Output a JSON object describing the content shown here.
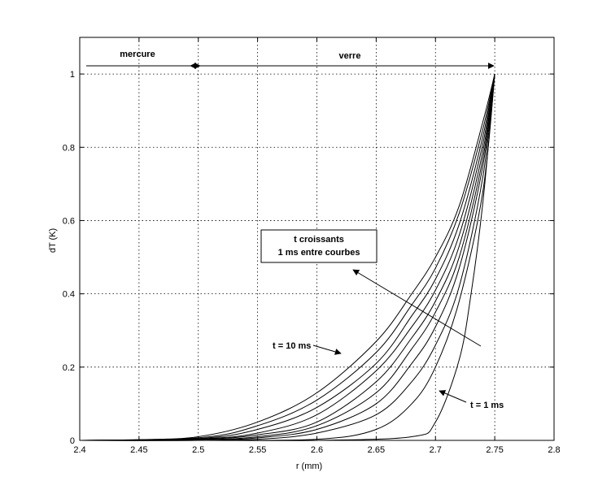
{
  "chart_data": {
    "type": "line",
    "xlabel": "r (mm)",
    "ylabel": "dT (K)",
    "xlim": [
      2.4,
      2.8
    ],
    "ylim": [
      0,
      1.1
    ],
    "x_ticks": [
      2.4,
      2.45,
      2.5,
      2.55,
      2.6,
      2.65,
      2.7,
      2.75,
      2.8
    ],
    "x_tick_labels": [
      "2.4",
      "2.45",
      "2.5",
      "2.55",
      "2.6",
      "2.65",
      "2.7",
      "2.75",
      "2.8"
    ],
    "y_ticks": [
      0,
      0.2,
      0.4,
      0.6,
      0.8,
      1
    ],
    "y_tick_labels": [
      "0",
      "0.2",
      "0.4",
      "0.6",
      "0.8",
      "1"
    ],
    "grid": true,
    "series": [
      {
        "t_ms": 1,
        "x": [
          2.4,
          2.5,
          2.6,
          2.68,
          2.7,
          2.72,
          2.73,
          2.74,
          2.75
        ],
        "y": [
          0,
          0,
          0,
          0.01,
          0.05,
          0.22,
          0.4,
          0.65,
          1
        ]
      },
      {
        "t_ms": 2,
        "x": [
          2.4,
          2.5,
          2.6,
          2.65,
          2.68,
          2.7,
          2.72,
          2.74,
          2.75
        ],
        "y": [
          0,
          0,
          0.003,
          0.03,
          0.1,
          0.2,
          0.38,
          0.68,
          1
        ]
      },
      {
        "t_ms": 3,
        "x": [
          2.4,
          2.5,
          2.55,
          2.6,
          2.65,
          2.68,
          2.7,
          2.72,
          2.74,
          2.75
        ],
        "y": [
          0,
          0,
          0.003,
          0.02,
          0.07,
          0.16,
          0.26,
          0.42,
          0.72,
          1
        ]
      },
      {
        "t_ms": 4,
        "x": [
          2.4,
          2.5,
          2.55,
          2.6,
          2.65,
          2.68,
          2.7,
          2.72,
          2.74,
          2.75
        ],
        "y": [
          0,
          0,
          0.007,
          0.03,
          0.1,
          0.21,
          0.31,
          0.47,
          0.75,
          1
        ]
      },
      {
        "t_ms": 5,
        "x": [
          2.4,
          2.5,
          2.55,
          2.6,
          2.65,
          2.68,
          2.7,
          2.72,
          2.74,
          2.75
        ],
        "y": [
          0,
          0.002,
          0.01,
          0.04,
          0.13,
          0.25,
          0.35,
          0.5,
          0.77,
          1
        ]
      },
      {
        "t_ms": 6,
        "x": [
          2.4,
          2.5,
          2.55,
          2.6,
          2.65,
          2.68,
          2.7,
          2.72,
          2.74,
          2.75
        ],
        "y": [
          0,
          0.003,
          0.015,
          0.05,
          0.16,
          0.28,
          0.38,
          0.53,
          0.79,
          1
        ]
      },
      {
        "t_ms": 7,
        "x": [
          2.4,
          2.5,
          2.55,
          2.6,
          2.65,
          2.68,
          2.7,
          2.72,
          2.74,
          2.75
        ],
        "y": [
          0,
          0.004,
          0.02,
          0.07,
          0.19,
          0.31,
          0.41,
          0.56,
          0.81,
          1
        ]
      },
      {
        "t_ms": 8,
        "x": [
          2.4,
          2.5,
          2.55,
          2.6,
          2.65,
          2.68,
          2.7,
          2.72,
          2.74,
          2.75
        ],
        "y": [
          0,
          0.005,
          0.03,
          0.09,
          0.21,
          0.34,
          0.44,
          0.59,
          0.83,
          1
        ]
      },
      {
        "t_ms": 9,
        "x": [
          2.4,
          2.5,
          2.55,
          2.6,
          2.65,
          2.68,
          2.7,
          2.72,
          2.74,
          2.75
        ],
        "y": [
          0,
          0.007,
          0.04,
          0.11,
          0.24,
          0.37,
          0.47,
          0.62,
          0.85,
          1
        ]
      },
      {
        "t_ms": 10,
        "x": [
          2.4,
          2.45,
          2.5,
          2.55,
          2.6,
          2.65,
          2.68,
          2.7,
          2.72,
          2.74,
          2.75
        ],
        "y": [
          0,
          0.002,
          0.01,
          0.05,
          0.13,
          0.27,
          0.4,
          0.5,
          0.64,
          0.87,
          1
        ]
      }
    ],
    "annotations": {
      "mercure": "mercure",
      "verre": "verre",
      "box_line1": "t croissants",
      "box_line2": "1 ms entre courbes",
      "t10": "t = 10 ms",
      "t1": "t = 1 ms"
    }
  }
}
